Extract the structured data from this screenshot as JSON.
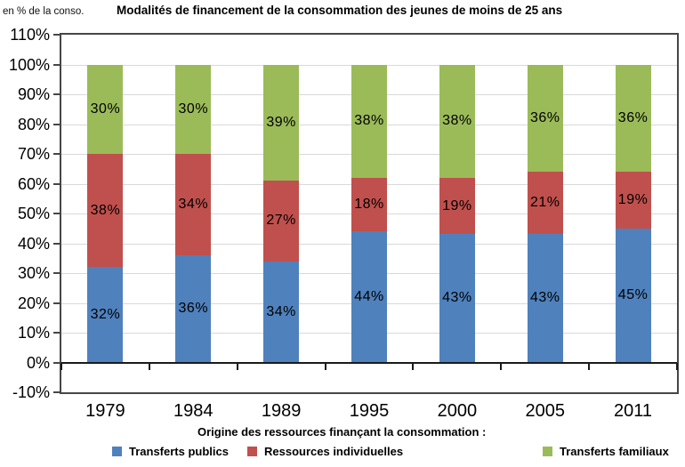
{
  "chart_data": {
    "type": "bar",
    "stacked": true,
    "title": "Modalités de financement de la consommation des jeunes de moins de 25 ans",
    "unit_note": "en % de la conso.",
    "legend_title": "Origine des ressources finançant la consommation :",
    "legend_position": "bottom",
    "grid": true,
    "categories": [
      "1979",
      "1984",
      "1989",
      "1995",
      "2000",
      "2005",
      "2011"
    ],
    "series": [
      {
        "name": "Transferts publics",
        "color": "#4F81BD",
        "values": [
          32,
          36,
          34,
          44,
          43,
          43,
          45
        ]
      },
      {
        "name": "Ressources individuelles",
        "color": "#C0504D",
        "values": [
          38,
          34,
          27,
          18,
          19,
          21,
          19
        ]
      },
      {
        "name": "Transferts familiaux",
        "color": "#9BBB59",
        "values": [
          30,
          30,
          39,
          38,
          38,
          36,
          36
        ]
      }
    ],
    "ylim": [
      -10,
      110
    ],
    "yticks": [
      110,
      100,
      90,
      80,
      70,
      60,
      50,
      40,
      30,
      20,
      10,
      0,
      -10
    ],
    "ytick_suffix": "%",
    "value_label_suffix": "%",
    "gridline_color": "#D9D9D9",
    "axis_color": "#464646",
    "zero_axis_color": "#1A1A1A"
  }
}
